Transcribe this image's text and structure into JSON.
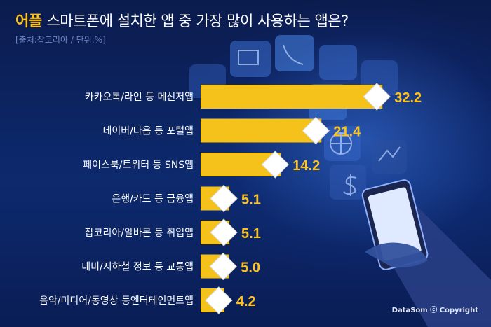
{
  "header": {
    "brand": "어플",
    "title": "스마트폰에 설치한 앱 중 가장 많이 사용하는 앱은?",
    "source": "[출처:잡코리아 / 단위:%]"
  },
  "footer": {
    "credit": "DataSom ⓒ Copyright"
  },
  "colors": {
    "bar": "#f5c21b",
    "label": "#ffffff",
    "value": "#ffc21a",
    "diamond": "#ffffff"
  },
  "chart_data": {
    "type": "bar",
    "orientation": "horizontal",
    "categories": [
      "카카오톡/라인 등 메신저앱",
      "네이버/다음 등 포털앱",
      "페이스북/트위터 등 SNS앱",
      "은행/카드 등 금융앱",
      "잡코리아/알바몬 등 취업앱",
      "네비/지하철 정보 등 교통앱",
      "음악/미디어/동영상 등엔터테인먼트앱"
    ],
    "values": [
      32.2,
      21.4,
      14.2,
      5.1,
      5.1,
      5.0,
      4.2
    ],
    "value_labels": [
      "32.2",
      "21.4",
      "14.2",
      "5.1",
      "5.1",
      "5.0",
      "4.2"
    ],
    "unit": "%",
    "xlim": [
      0,
      35
    ],
    "grid": false,
    "legend": "none"
  }
}
